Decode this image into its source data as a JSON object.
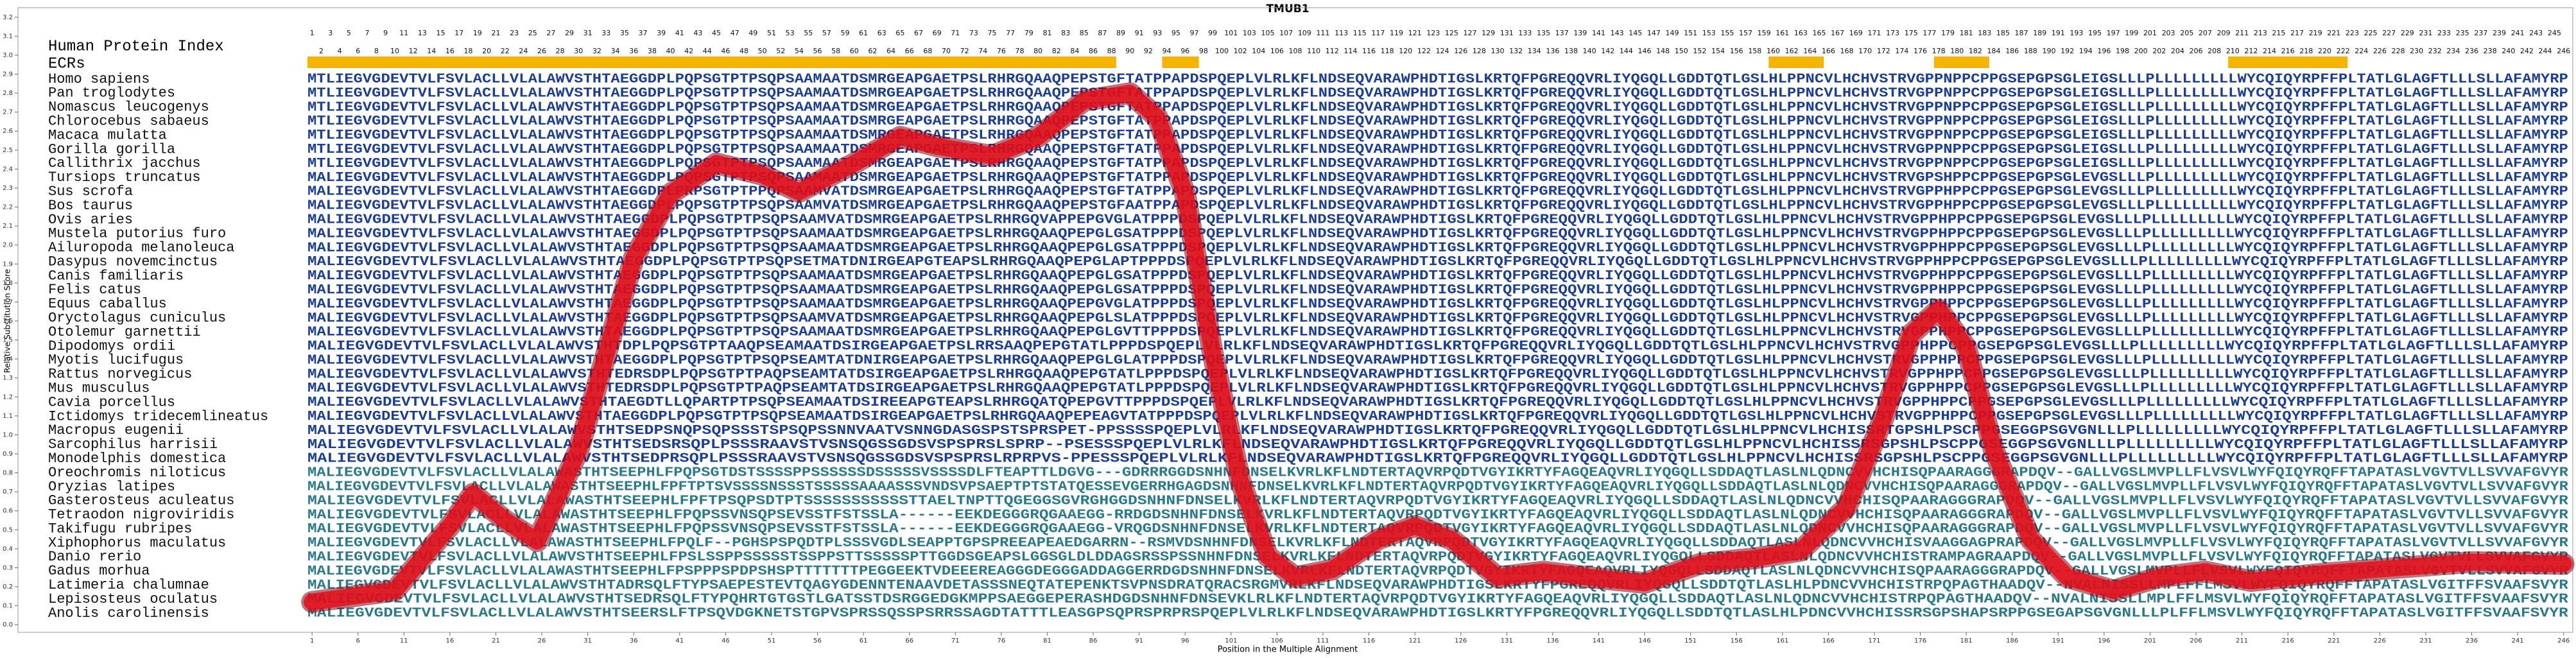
{
  "chart_data": {
    "type": "line",
    "title": "TMUB1",
    "xlabel": "Position in the Multiple Alignment",
    "ylabel": "Relative Substitution Score",
    "xlim": [
      -31,
      247
    ],
    "ylim": [
      -0.04,
      3.25
    ],
    "xticks": [
      1,
      6,
      11,
      16,
      21,
      26,
      31,
      36,
      41,
      46,
      51,
      56,
      61,
      66,
      71,
      76,
      81,
      86,
      91,
      96,
      101,
      106,
      111,
      116,
      121,
      126,
      131,
      136,
      141,
      146,
      151,
      156,
      161,
      166,
      171,
      176,
      181,
      186,
      191,
      196,
      201,
      206,
      211,
      216,
      221,
      226,
      231,
      236,
      241,
      246
    ],
    "yticks": [
      {
        "value": 0,
        "label": "0.0"
      },
      0.1,
      0.2,
      0.3,
      0.4,
      0.5,
      0.6,
      0.7,
      0.8,
      0.9,
      {
        "value": 1,
        "label": "1.0"
      },
      1.1,
      1.2,
      1.3,
      1.4,
      1.5,
      1.6,
      1.7,
      1.8,
      1.9,
      {
        "value": 2,
        "label": "2.0"
      },
      2.1,
      2.2,
      2.3,
      2.4,
      2.5,
      2.6,
      2.7,
      2.8,
      2.9,
      {
        "value": 3,
        "label": "3.0"
      },
      3.1,
      3.2
    ],
    "x": [
      1,
      10,
      16,
      18.5,
      22,
      25.5,
      30,
      36,
      40,
      45,
      50,
      54,
      60,
      65,
      69,
      75,
      80,
      85,
      90,
      93,
      96,
      99,
      102,
      105,
      108,
      112,
      117,
      121,
      125,
      130,
      135,
      140,
      146,
      152,
      158,
      163,
      168,
      172,
      175,
      178,
      181,
      184,
      188,
      192,
      197,
      202,
      207,
      212,
      220,
      228,
      236,
      246
    ],
    "series": [
      {
        "color": "#e3101c",
        "values": [
          0.12,
          0.18,
          0.52,
          0.69,
          0.55,
          0.44,
          0.92,
          1.93,
          2.27,
          2.43,
          2.37,
          2.28,
          2.43,
          2.57,
          2.52,
          2.47,
          2.57,
          2.76,
          2.8,
          2.67,
          2.27,
          1.43,
          0.76,
          0.36,
          0.25,
          0.29,
          0.45,
          0.52,
          0.45,
          0.25,
          0.28,
          0.25,
          0.22,
          0.32,
          0.35,
          0.39,
          0.62,
          1.09,
          1.53,
          1.66,
          1.46,
          0.92,
          0.45,
          0.25,
          0.18,
          0.25,
          0.28,
          0.23,
          0.27,
          0.3,
          0.33,
          0.32
        ]
      }
    ],
    "index_label": "Human Protein Index",
    "ecr_label": "ECRs",
    "ecr_color": "#f5b400",
    "ecrs": [
      [
        1,
        88
      ],
      [
        94,
        97
      ],
      [
        160,
        165
      ],
      [
        178,
        183
      ],
      [
        210,
        222
      ]
    ],
    "human_index": [
      1,
      2,
      3,
      4,
      5,
      6,
      7,
      8,
      9,
      10,
      11,
      12,
      13,
      14,
      15,
      16,
      17,
      18,
      19,
      20,
      21,
      22,
      23,
      24,
      25,
      26,
      27,
      28,
      29,
      30,
      31,
      32,
      33,
      34,
      35,
      36,
      37,
      38,
      39,
      40,
      41,
      42,
      43,
      44,
      45,
      46,
      47,
      48,
      49,
      50,
      51,
      52,
      53,
      54,
      55,
      56,
      57,
      58,
      59,
      60,
      61,
      62,
      63,
      64,
      65,
      66,
      67,
      68,
      69,
      70,
      71,
      72,
      73,
      74,
      75,
      76,
      77,
      78,
      79,
      80,
      81,
      82,
      83,
      84,
      85,
      86,
      87,
      88,
      89,
      90,
      91,
      92,
      93,
      94,
      95,
      96,
      97,
      98,
      99,
      100,
      101,
      102,
      103,
      104,
      105,
      106,
      107,
      108,
      109,
      110,
      111,
      112,
      113,
      114,
      115,
      116,
      117,
      118,
      119,
      120,
      121,
      122,
      123,
      124,
      125,
      126,
      127,
      128,
      129,
      130,
      131,
      132,
      133,
      134,
      135,
      136,
      137,
      138,
      139,
      140,
      141,
      142,
      143,
      144,
      145,
      146,
      147,
      148,
      149,
      150,
      151,
      152,
      153,
      154,
      155,
      156,
      157,
      158,
      159,
      160,
      161,
      162,
      163,
      164,
      165,
      166,
      167,
      168,
      169,
      170,
      171,
      172,
      173,
      174,
      175,
      176,
      177,
      178,
      179,
      180,
      181,
      182,
      183,
      184,
      185,
      186,
      187,
      188,
      189,
      190,
      191,
      192,
      193,
      194,
      195,
      196,
      197,
      198,
      199,
      200,
      201,
      202,
      203,
      204,
      205,
      206,
      207,
      208,
      209,
      210,
      211,
      212,
      213,
      214,
      215,
      216,
      217,
      218,
      219,
      220,
      221,
      222,
      223,
      224,
      225,
      226,
      227,
      228,
      229,
      230,
      231,
      232,
      233,
      234,
      235,
      236,
      237,
      238,
      239,
      240,
      241,
      242,
      243,
      244,
      245,
      246
    ],
    "species": [
      {
        "name": "Homo sapiens",
        "sequence": "MTLIEGVGDEVTVLFSVLACLLVLALAWVSTHTAEGGDPLPQPSGTPTPSQPSAAMAATDSMRGEAPGAETPSLRHRGQAAQPEPSTGFTATPPAPDSPQEPLVLRLKFLNDSEQVARAWPHDTIGSLKRTQFPGREQQVRLIYQGQLLGDDTQTLGSLHLPPNCVLHCHVSTRVGPPNPPCPPGSEPGPSGLEIGSLLLPLLLLLLLLLWYCQIQYRPFFPLTATLGLAGFTLLLSLLAFAMYRP"
      },
      {
        "name": "Pan troglodytes",
        "sequence": "MTLIEGVGDEVTVLFSVLACLLVLALAWVSTHTAEGGDPLPQPSGTPTPSQPSAAMAATDSMRGEAPGAETPSLRHRGQAAQPEPSTGFTATPPAPDSPQEPLVLRLKFLNDSEQVARAWPHDTIGSLKRTQFPGREQQVRLIYQGQLLGDDTQTLGSLHLPPNCVLHCHVSTRVGPPNPPCPPGSEPGPSGLEIGSLLLPLLLLLLLLLWYCQIQYRPFFPLTATLGLAGFTLLLSLLAFAMYRP"
      },
      {
        "name": "Nomascus leucogenys",
        "sequence": "MTLIEGVGDEVTVLFSVLACLLVLALAWVSTHTAEGGDPLPQPSGTPTPSQPSAAMAATDSMRGEAPGAETPSLRHRGQAAQPEPSTGFTATPPAPDSPQEPLVLRLKFLNDSEQVARAWPHDTIGSLKRTQFPGREQQVRLIYQGQLLGDDTQTLGSLHLPPNCVLHCHVSTRVGPPNPPCPPGSEPGPSGLEIGSLLLPLLLLLLLLLWYCQIQYRPFFPLTATLGLAGFTLLLSLLAFAMYRP"
      },
      {
        "name": "Chlorocebus sabaeus",
        "sequence": "MTLIEGVGDEVTVLFSVLACLLVLALAWVSTHTAEGGDPLPQPSGTPTPSQPSAAMAATDSMRGEAPGAETPSLRHRGQAAQPEPSTGFTATPPAPDSPQEPLVLRLKFLNDSEQVARAWPHDTIGSLKRTQFPGREQQVRLIYQGQLLGDDTQTLGSLHLPPNCVLHCHVSTRVGPPNPPCPPGSEPGPSGLEIGSLLLPLLLLLLLLLWYCQIQYRPFFPLTATLGLAGFTLLLSLLAFAMYRP"
      },
      {
        "name": "Macaca mulatta",
        "sequence": "MTLIEGVGDEVTVLFSVLACLLVLALAWVSTHTAEGGDPLPQPSGTPTPSQPSAAMAATDSMRGEAPGAETPSLRHRGQAAQPEPSTGFTATPPAPDSPQEPLVLRLKFLNDSEQVARAWPHDTIGSLKRTQFPGREQQVRLIYQGQLLGDDTQTLGSLHLPPNCVLHCHVSTRVGPPNPPCPPGSEPGPSGLEIGSLLLPLLLLLLLLLWYCQIQYRPFFPLTATLGLAGFTLLLSLLAFAMYRP"
      },
      {
        "name": "Gorilla gorilla",
        "sequence": "MTLIEGVGDEVTVLFSVLACLLVLALAWVSTHTAEGGDPLPQPSGTPTPSQPSAAMAATDSMRGEAPGAETPSLRHRGQAAQPEPSTGFTATPPAPDSPQEPLVLRLKFLNDSEQVARAWPHDTIGSLKRTQFPGREQQVRLIYQGQLLGDDTQTLGSLHLPPNCVLHCHVSTRVGPPNPPCPPGSEPGPSGLEIGSLLLPLLLLLLLLLWYCQIQYRPFFPLTATLGLAGFTLLLSLLAFAMYRP"
      },
      {
        "name": "Callithrix jacchus",
        "sequence": "MTLIEGVGDEVTVLFSVLACLLVLALAWVSTHTAEGGDPLPQPSGTPTPSQPSAAMAATDSMRGEAPGAETPSLRHRGQAAQPEPSTGFTATPPAPDSPQEPLVLRLKFLNDSEQVARAWPHDTIGSLKRTQFPGREQQVRLIYQGQLLGDDTQTLGSLHLPPNCVLHCHVSTRVGPPNPPCPPGSEPGPSGLEIGSLLLPLLLLLLLLLWYCQIQYRPFFPLTATLGLAGFTLLLSLLAFAMYRP"
      },
      {
        "name": "Tursiops truncatus",
        "sequence": "MALIEGVGDEVTVLFSVLACLLVLALAWVSTHTAEGGDPLPQPSGTPTPSQPSAAMAATDSMRGEAPGAETPSLRHRGQAAQPEPSTGFTATPPAPDSPQEPLVLRLKFLNDSEQVARAWPHDTIGSLKRTQFPGREQQVRLIYQGQLLGDDTQTLGSLHLPPNCVLHCHVSTRVGPSHPPCPPGSEPGPSGLEVGSLLLPLLLLLLLLLWYCQIQYRPFFPLTATLGLAGFTLLLSLLAFAMYRP"
      },
      {
        "name": "Sus scrofa",
        "sequence": "MALIEGVGDEVTVLFSVLACLLVLALAWVSTHTAEGGDPLPRPSGTPTPPQPSAAMVATDSMRGEAPGAETPSLRHRGQAAQPEPSTGFTATPPAPDSPQEPLVLRLKFLNDSEQVARAWPHDTIGSLKRTQFPGREQQVRLIYQGQLLGDDTQTLGSLHLPPNCVLHCHVSTRVGPPHPPCPPGSEPGPSGLEVGSLLLPLLLLLLLLLWYCQIQYRPFFPLTATLGLAGFTLLLSLLAFAMYRP"
      },
      {
        "name": "Bos taurus",
        "sequence": "MALIEGVGDEVTVLFSVLACLLVLALAWVSTHTAEGGDPLPQPSGTPTPSQPSAAMVATDSMRGEAPGAETPSLRHRGQAAQPEPSTGFAATPPAPDSPQEPLVLRLKFLNDSEQVARAWPHDTIGSLKRTQFPGREQQVRLIYQGQLLGDDTQTLGSLHLPPNCVLHCHVSTRVGPPHPPCPPGSEPGPSGLEVGSLLLPLLLLLLLLLWYCQIQYRPFFPLTATLGLAGFTLLLSLLAFAMYRP"
      },
      {
        "name": "Ovis aries",
        "sequence": "MALIEGVGDEVTVLFSVLACLLVLALAWVSTHTAEGGDPLPQPSGTPTPSQPSAAMVATDSMRGEAPGAETPSLRHRGQVAPPEPGVGLATPPPDSPQEPLVLRLKFLNDSEQVARAWPHDTIGSLKRTQFPGREQQVRLIYQGQLLGDDTQTLGSLHLPPNCVLHCHVSTRVGPPHPPCPPGSEPGPSGLEVGSLLLPLLLLLLLLLWYCQIQYRPFFPLTATLGLAGFTLLLSLLAFAMYRP"
      },
      {
        "name": "Mustela putorius furo",
        "sequence": "MALIEGVGDEVTVLFSVLACLLVLALAWVSTHTAEGGDPLPQPSGTPTPSQPSAAMAATDSMRGEAPGAETPSLRHRGQAAQPEPGLGSATPPPDSPQEPLVLRLKFLNDSEQVARAWPHDTIGSLKRTQFPGREQQVRLIYQGQLLGDDTQTLGSLHLPPNCVLHCHVSTRVGPPHPPCPPGSEPGPSGLEVGSLLLPLLLLLLLLLWYCQIQYRPFFPLTATLGLAGFTLLLSLLAFAMYRP"
      },
      {
        "name": "Ailuropoda melanoleuca",
        "sequence": "MALIEGVGDEVTVLFSVLACLLVLALAWVSTHTAEGGDPLPQPSGTPTPSQPSAAMAATDSMRGEAPGAETPSLRHRGQAAQPEPGLGSATPPPDSPQEPLVLRLKFLNDSEQVARAWPHDTIGSLKRTQFPGREQQVRLIYQGQLLGDDTQTLGSLHLPPNCVLHCHVSTRVGPPHPPCPPGSEPGPSGLEVGSLLLPLLLLLLLLLWYCQIQYRPFFPLTATLGLAGFTLLLSLLAFAMYRP"
      },
      {
        "name": "Dasypus novemcinctus",
        "sequence": "MALIEGVGDEVTVLFSVLACLLVLALAWVSTHTAEGGDPLPQPSGTPTPSQPSETMATDNIRGEAPGTEAPSLRHRGQAAQPEPGLAPTPPPDSPQEPLVLRLKFLNDSEQVARAWPHDTIGSLKRTQFPGREQQVRLIYQGQLLGDDTQTLGSLHLPPNCVLHCHVSTRVGPPHPPCPPGSEPGPSGLEVGSLLLPLLLLLLLLLWYCQIQYRPFFPLTATLGLAGFTLLLSLLAFAMYRP"
      },
      {
        "name": "Canis familiaris",
        "sequence": "MALIEGVGDEVTVLFSVLACLLVLALAWVSTHTAEGGDPLPQPSGTPTPSQPSAAMAATDSMRGEAPGAETPSLRHRGQAAQPEPGLGSATPPPDSPQEPLVLRLKFLNDSEQVARAWPHDTIGSLKRTQFPGREQQVRLIYQGQLLGDDTQTLGSLHLPPNCVLHCHVSTRVGPPHPPCPPGSEPGPSGLEVGSLLLPLLLLLLLLLWYCQIQYRPFFPLTATLGLAGFTLLLSLLAFAMYRP"
      },
      {
        "name": "Felis catus",
        "sequence": "MALIEGVGDEVTVLFSVLACLLVLALAWVSTHTAEGGDPLPQPSGTPTPSQPSAAMAATDSMRGEAPGAETPSLRHRGQAAQPEPGLGSATPPPDSPQEPLVLRLKFLNDSEQVARAWPHDTIGSLKRTQFPGREQQVRLIYQGQLLGDDTQTLGSLHLPPNCVLHCHVSTRVGPPHPPCPPGSEPGPSGLEVGSLLLPLLLLLLLLLWYCQIQYRPFFPLTATLGLAGFTLLLSLLAFAMYRP"
      },
      {
        "name": "Equus caballus",
        "sequence": "MALIEGVGDEVTVLFSVLACLLVLALAWVSTHTAEGGDPLPQPSGTPTPSQPSAAMAATDSMRGEAPGAETPSLRHRGQAAQPEPGVGLATPPPDSPQEPLVLRLKFLNDSEQVARAWPHDTIGSLKRTQFPGREQQVRLIYQGQLLGDDTQTLGSLHLPPNCVLHCHVSTRVGPPHPPCPPGSEPGPSGLEVGSLLLPLLLLLLLLLWYCQIQYRPFFPLTATLGLAGFTLLLSLLAFAMYRP"
      },
      {
        "name": "Oryctolagus cuniculus",
        "sequence": "MALIEGVGDEVTVLFSVLACLLVLALAWVSTHTAEGGDPLPQPSGTPTPSQPSAAMVATDSMRGEAPGAETPSLRHRGQAAQPEPGLSLATPPPDSPQEPLVLRLKFLNDSEQVARAWPHDTIGSLKRTQFPGREQQVRLIYQGQLLGDDTQTLGSLHLPPNCVLHCHVSTRVGPPHPPCPPGSEPGPSGLEVGSLLLPLLLLLLLLLWYCQIQYRPFFPLTATLGLAGFTLLLSLLAFAMYRP"
      },
      {
        "name": "Otolemur garnettii",
        "sequence": "MALIEGVGDEVTVLFSVLACLLVLALAWVSTHTAEGGDPLPQPSGTPTPSQPSAAMAATDSMRGEAPGAETPSLRHRGQAAQPEPGLGVTTPPPDSPQEPLVLRLKFLNDSEQVARAWPHDTIGSLKRTQFPGREQQVRLIYQGQLLGDDTQTLGSLHLPPNCVLHCHVSTRVGPPHPPCPPGSEPGPSGLEVGSLLLPLLLLLLLLLWYCQIQYRPFFPLTATLGLAGFTLLLSLLAFAMYRP"
      },
      {
        "name": "Dipodomys ordii",
        "sequence": "MALIEGVGDEVTVLFSVLACLLVLALAWVSTHTDPLPQPSGTPTAAQPSEAMAATDSIRGEAPGAETPSLRRSAAQPEPGTATLPPPDSPQEPLVLRLKFLNDSEQVARAWPHDTIGSLKRTQFPGREQQVRLIYQGQLLGDDTQTLGSLHLPPNCVLHCHVSTRVGPPHPPCPPGSEPGPSGLEVGSLLLPLLLLLLLLLWYCQIQYRPFFPLTATLGLAGFTLLLSLLAFAMYRP"
      },
      {
        "name": "Myotis lucifugus",
        "sequence": "MALIEGVGDEVTVLFSVLACLLVLALAWVSTHTAEGGDPLPQPSGTPTPSQPSEAMTATDNIRGEAPGAETPSLRHRGQAAQPEPGLGLATPPPDSPQEPLVLRLKFLNDSEQVARAWPHDTIGSLKRTQFPGREQQVRLIYQGQLLGDDTQTLGSLHLPPNCVLHCHVSTRVGPPHPPCPPGSEPGPSGLEVGSLLLPLLLLLLLLLWYCQIQYRPFFPLTATLGLAGFTLLLSLLAFAMYRP"
      },
      {
        "name": "Rattus norvegicus",
        "sequence": "MALIEGVGDEVTVLFSVLACLLVLALAWVSTHTEDRSDPLPQPSGTPTPAQPSEAMTATDSIRGEAPGAETPSLRHRGQAAQPEPGTATLPPPDSPQEPLVLRLKFLNDSEQVARAWPHDTIGSLKRTQFPGREQQVRLIYQGQLLGDDTQTLGSLHLPPNCVLHCHVSTRVGPPHPPCPPGSEPGPSGLEVGSLLLPLLLLLLLLLWYCQIQYRPFFPLTATLGLAGFTLLLSLLAFAMYRP"
      },
      {
        "name": "Mus musculus",
        "sequence": "MALIEGVGDEVTVLFSVLACLLVLALAWVSTHTEDRSDPLPQPSGTPTPAQPSEAMTATDSIRGEAPGAETPSLRHRGQAAQPEPGTATLPPPDSPQEPLVLRLKFLNDSEQVARAWPHDTIGSLKRTQFPGREQQVRLIYQGQLLGDDTQTLGSLHLPPNCVLHCHVSTRVGPPHPPCPPGSEPGPSGLEVGSLLLPLLLLLLLLLWYCQIQYRPFFPLTATLGLAGFTLLLSLLAFAMYRP"
      },
      {
        "name": "Cavia porcellus",
        "sequence": "MALIEGVGDEVTVLFSVLACLLVLALAWVSTHTAEGDTLLQPARTPTPSQPSEAMAATDSIREEAPGTEAPSLRHRGQATQPEPGVTTPPPDSPQEPLVLRLKFLNDSEQVARAWPHDTIGSLKRTQFPGREQQVRLIYQGQLLGDDTQTLGSLHLPPNCVLHCHVSTRVGPPHPPCPPGSEPGPSGLEVGSLLLPLLLLLLLLLWYCQIQYRPFFPLTATLGLAGFTLLLSLLAFAMYRP"
      },
      {
        "name": "Ictidomys tridecemlineatus",
        "sequence": "MALIEGVGDEVTVLFSVLACLLVLALAWVSTHTAEGGDPLPQPSGTPTPSQPSEAMAATDSIRGEAPGAETPSLRHRGQAAQPEPEAGVTATPPPDSPQEPLVLRLKFLNDSEQVARAWPHDTIGSLKRTQFPGREQQVRLIYQGQLLGDDTQTLGSLHLPPNCVLHCHVSTRVGPPHPPCPPGSEPGPSGLEVGSLLLPLLLLLLLLLWYCQIQYRPFFPLTATLGLAGFTLLLSLLAFAMYRP"
      },
      {
        "name": "Macropus eugenii",
        "sequence": "MALIEGVGDEVTVLFSVLACLLVLALAWVSTHTSEDPSNQPSQPSSSTSPSQPSSNNVAATVSNNGDASGSPSTSPRSPET-PPSSSSPQEPLVLRLKFLNDSEQVARAWPHDTIGSLKRTQFPGREQQVRLIYQGQLLGDDTQTLGSLHLPPNCVLHCHISSRTGPSHLPSCPPGSEGGPSGVGNLLLPLLLLLLLLLWYCQIQYRPFFPLTATLGLAGFTLLLSLLAFAMYRP"
      },
      {
        "name": "Sarcophilus harrisii",
        "sequence": "MALIEGVGDEVTVLFSVLACLLVLALAWVSTHTSEDSRSQPLPSSSRAAVSTVSNSQGSSGDSVSPSPRSLSPRP--PSESSSPQEPLVLRLKFLNDSEQVARAWPHDTIGSLKRTQFPGREQQVRLIYQGQLLGDDTQTLGSLHLPPNCVLHCHISSRSGPSHLPSCPPGSEGGPSGVGNLLLPLLLLLLLLLWYCQIQYRPFFPLTATLGLAGFTLLLSLLAFAMYRP"
      },
      {
        "name": "Monodelphis domestica",
        "sequence": "MALIEGVGDEVTVLFSVLACLLVLALAWVSTHTSEDPRSQPLPSSSRAAVSTVSNSQGSSGDSVSPSPRSLRPRPVS-PPESSSPQEPLVLRLKFLNDSEQVARAWPHDTIGSLKRTQFPGREQQVRLIYQGQLLGDDTQTLGSLHLPPNCVLHCHISSRSGPSHLPSCPPGSEGGPSGVGNLLLPLLLLLLLLLWYCQIQYRPFFPLTATLGLAGFTLLLSLLAFAMYRP"
      },
      {
        "name": "Oreochromis niloticus",
        "sequence": "MALIEGVGDEVTVLFSVLACLLVLALAWASTHTSEEPHLFPQPSGTDSTSSSSPPSSSSSSDSSSSSVSSSSDLFTEAPTTLDGVG---GDRRRGGDSNHNFDNSELKVRLKFLNDTERTAQVRPQDTVGYIKRTYFAGQEAQVRLIYQGQLLSDDAQTLASLNLQDNCVVHCHISQPAARAGGGRAPDQV--GALLVGSLMVPLLFLVSVLWYFQIQYRQFFTAPATASLVGVTVLLSVVAFGVYR"
      },
      {
        "name": "Oryzias latipes",
        "sequence": "MALIEGVGDEVTVLFSVLACLLVLALAWASTHTSEEPHLFPFTPTSVSSSSNSSSTSSSSSAAAASSSVNDSVPSAEPTPTSTATQESSEVGERRHGAGDSNHNFDNSELKVRLKFLNDTERTAQVRPQDTVGYIKRTYFAGQEAQVRLIYQGQLLSDDAQTLASLNLQDNCVVHCHISQPAARAGGGRAPDQV--GALLVGSLMVPLLFLVSVLWYFQIQYRQFFTAPATASLVGVTVLLSVVAFGVYR"
      },
      {
        "name": "Gasterosteus aculeatus",
        "sequence": "MALIEGVGDEVTVLFSVLACLLVLALAWASTHTSEEPHLFPFTPSQPSDTPTSSSSSSSSSSSTTAELTNPTTQGEGGSGVRGHGGDSNHNFDNSELKVRLKFLNDTERTAQVRPQDTVGYIKRTYFAGQEAQVRLIYQGQLLSDDAQTLASLNLQDNCVVHCHISQPAARAGGGRAPDQV--GALLVGSLMVPLLFLVSVLWYFQIQYRQFFTAPATASLVGVTVLLSVVAFGVYR"
      },
      {
        "name": "Tetraodon nigroviridis",
        "sequence": "MALIEGVGDEVTVLFSVLACLLVLALAWASTHTSEEPHLFPQPSSVNSQPSEVSSTFSTSSLA------EEKDEGGGRQGAAEGG-RRDGDSNHNFDNSELKVRLKFLNDTERTAQVRPQDTVGYIKRTYFAGQEAQVRLIYQGQLLSDDAQTLASLNLQDNCVVHCHISQPAARAGGGRAPDQV--GALLVGSLMVPLLFLVSVLWYFQIQYRQFFTAPATASLVGVTVLLSVVAFGVYR"
      },
      {
        "name": "Takifugu rubripes",
        "sequence": "MALIEGVGDEVTVLFSVLACLLVLALAWASTHTSEEPHLFPQPSSVNSQPSEVSSTFSTSSLA------EEKDEGGGRQGAAEGG-VRQGDSNHNFDNSELKVRLKFLNDTERTAQVRPQDTVGYIKRTYFAGQEAQVRLIYQGQLLSDDAQTLASLNLQDNCVVHCHISQPAARAGGGRAPDQV--GALLVGSLMVPLLFLVSVLWYFQIQYRQFFTAPATASLVGVTVLLSVVAFGVYR"
      },
      {
        "name": "Xiphophorus maculatus",
        "sequence": "MALIEGVGDEVTVLFSVLACLLVLALAWASTHTSEEPHLFPQLF--PGHSPSPQDTPLSSSVGDLSEAPPTGPSPREEAPEAEDGARRN--RSMVDSNHNFDNSELKVRLKFLNDTERTAQVRPQDTVGYIKRTYFAGQEAQVRLIYQGQLLSDDAQTLASLNLQDNCVVHCHISVAAGGAGPRAPDQV--GALLVGSLMVPLLFLVSVLWYFQIQYRQFFTAPATASLVGVTVLLSVVAFGVYR"
      },
      {
        "name": "Danio rerio",
        "sequence": "MALIEGVGDEVTVLFSVLACLLVLALAWVSTHTSEEPHLFPSLSSPPSSSSSTSSPPSTTSSSSSPTTGGDSGEAPSLGGSGLDLDDAGSRSSPSSNHNFDNSELKVRLKFLNDTERTAQVRPQDTVGYIKRTYFAGQEAQVRLIYQGQLLSDDAQTLASLNLQDNCVVHCHISTRAMPAGRAAPDQV--GALLVGSLMVPLLFLVSVLWYFQIQYRQFFTAPATASLVGVTVLLSVVAFGVYR"
      },
      {
        "name": "Gadus morhua",
        "sequence": "MALIEGVGDEVTVLFSVLACLLVLALAWASTHTSEEPHLFPSPPPSPDPSHSPTTTTTTTPEGGEEKTVDEEEREAGGGDEGGGADDAGGERRDGDSNHNFDNSELKVRLKFLNDTERTAQVRPQDTVGYIKRTYFAGQEAQVRLIYQGQLLSDDAQTLASLNLQDNCVVHCHISQPAARAGGGRAPDQV--GALLVGSLMVPLLFLVSVLWYFQIQYRQFFTAPATASLVGVTVLLSVVAFGVYR"
      },
      {
        "name": "Latimeria chalumnae",
        "sequence": "MALIEGVGDEVTVLFSVLACLLVLALAWVSTHTADRSQLFTYPSAEPESTEVTQAGYGDENNTENAAVDETASSSNEQTATEPENKTSVPNSDRATQRACSRGMVRLKFLNDSEQVARAWPHDTIGSLKRTYFPGREQQVRLIYQGQLLSDDTQTLASLHLPDNCVVHCHISTRPQPAGTHAADQV--NVALNISSLLMPLFFLMSVLWYFQIQYRQFFTAPATASLVGITFFSVAAFSVYR"
      },
      {
        "name": "Lepisosteus oculatus",
        "sequence": "MALIEGVGDEVTVLFSVLACLLVLALAWVSTHTSEDRSQLFTYPQHRTGTGSTLGATSSTDSRGGEDGKMPPSAEGGEPERASHDGDSNHNFDNSEVKLRLKFLNDTERTAQVRPQDTVGYIKRTYFAGQEAQVRLIYQGQLLSDDAQTLASLNLQDNCVVHCHISTRPQPAGTHAADQV--NVALNISSLLMPLFFLMSVLWYFQIQYRQFFTAPATASLVGITFFSVAAFSVYR"
      },
      {
        "name": "Anolis carolinensis",
        "sequence": "MALIEGVGDEVTVLFSVLACLLVLALAWVSTHTSEERSLFTPSQVDGKNETSTGPVSPRSSQSSPSRRSSAGDTATTTLEASGPSQPRSPRPRSPQEPLVLRLKFLNDSEQVARAWPHDTIGSLKRTYFPGREQQVRLIYQGQLLSDDTQTLASLHLPDNCVVHCHISSRSGPSHAPSRPPGSEGAPSGVGNLLLPLFFLMSVLWYFQIQYRQFFTAPATASLVGITFFSVAAFSVYR"
      }
    ]
  }
}
